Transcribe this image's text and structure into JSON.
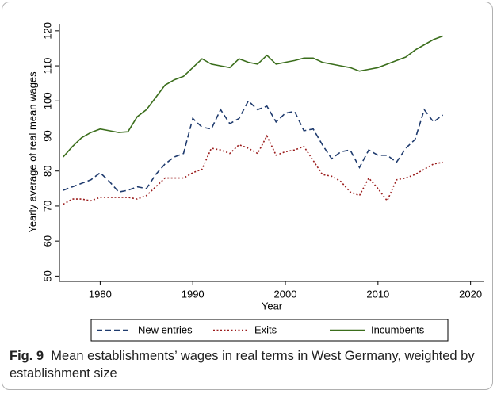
{
  "chart_data": {
    "type": "line",
    "y_label": "Yearly average of real mean wages",
    "x_label": "Year",
    "x": [
      1976,
      1977,
      1978,
      1979,
      1980,
      1981,
      1982,
      1983,
      1984,
      1985,
      1986,
      1987,
      1988,
      1989,
      1990,
      1991,
      1992,
      1993,
      1994,
      1995,
      1996,
      1997,
      1998,
      1999,
      2000,
      2001,
      2002,
      2003,
      2004,
      2005,
      2006,
      2007,
      2008,
      2009,
      2010,
      2011,
      2012,
      2013,
      2014,
      2015,
      2016,
      2017
    ],
    "series": [
      {
        "name": "New entries",
        "color": "#1f3b6e",
        "style": "dash",
        "values": [
          74.5,
          75.5,
          76.5,
          77.5,
          79.5,
          77,
          74,
          74.5,
          75.5,
          75,
          79,
          82,
          84,
          85,
          95,
          92.5,
          92,
          97.5,
          93.5,
          95,
          100,
          97.5,
          98.5,
          94,
          96.5,
          97,
          91.5,
          92,
          87.5,
          83.5,
          85.5,
          86,
          81,
          86,
          84.5,
          84.5,
          82.5,
          86.5,
          89,
          97.5,
          94,
          96
        ]
      },
      {
        "name": "Exits",
        "color": "#9b1c1c",
        "style": "dot",
        "values": [
          70.5,
          72,
          72,
          71.5,
          72.5,
          72.5,
          72.5,
          72.5,
          72,
          73,
          75.5,
          78,
          78,
          78,
          79.5,
          80.5,
          86.5,
          86,
          85,
          87.5,
          86.5,
          85,
          90,
          84.5,
          85.5,
          86,
          87,
          83,
          79,
          78.5,
          77,
          74,
          73,
          78,
          75,
          71.5,
          77.5,
          78,
          79,
          80.5,
          82,
          82.5
        ]
      },
      {
        "name": "Incumbents",
        "color": "#3b6e1c",
        "style": "solid",
        "values": [
          84,
          87,
          89.5,
          91,
          92,
          91.5,
          91,
          91.2,
          95.5,
          97.5,
          101,
          104.5,
          106,
          107,
          109.5,
          112,
          110.5,
          110,
          109.5,
          112,
          111,
          110.5,
          113,
          110.5,
          111,
          111.5,
          112.2,
          112.2,
          111,
          110.5,
          110,
          109.5,
          108.5,
          109,
          109.5,
          110.5,
          111.5,
          112.5,
          114.5,
          116,
          117.5,
          118.5
        ]
      }
    ],
    "xlim": [
      1975.6,
      2021.4
    ],
    "xticks": [
      1980,
      1990,
      2000,
      2010,
      2020
    ],
    "ylim": [
      48.5,
      122
    ],
    "yticks": [
      50,
      60,
      70,
      80,
      90,
      100,
      110,
      120
    ],
    "grid": false,
    "legend": "bottom"
  },
  "caption": {
    "label": "Fig. 9",
    "text": "Mean establishments’ wages in real terms in West Germany, weighted by establishment size"
  }
}
